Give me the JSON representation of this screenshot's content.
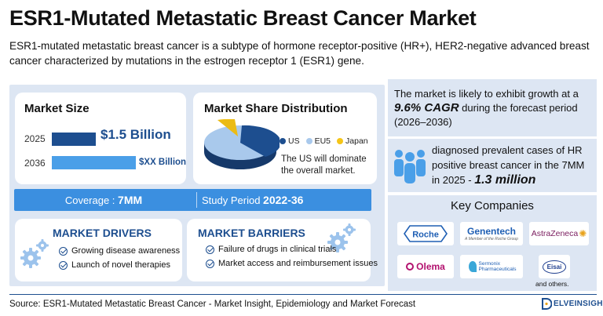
{
  "header": {
    "title": "ESR1-Mutated Metastatic Breast Cancer Market",
    "description": "ESR1-mutated metastatic breast cancer is a subtype of hormone receptor-positive (HR+), HER2-negative advanced breast cancer characterized by mutations in the estrogen receptor 1 (ESR1) gene."
  },
  "market_size": {
    "heading": "Market Size",
    "rows": [
      {
        "year": "2025",
        "value": "$1.5 Billion"
      },
      {
        "year": "2036",
        "value": "$XX Billion"
      }
    ]
  },
  "market_share": {
    "heading": "Market Share Distribution",
    "legend": [
      {
        "label": "US",
        "color": "#1d4e8f"
      },
      {
        "label": "EU5",
        "color": "#a9c9ec"
      },
      {
        "label": "Japan",
        "color": "#f5c518"
      }
    ],
    "note": "The US will dominate the overall market."
  },
  "band": {
    "coverage_label": "Coverage : ",
    "coverage_value": "7MM",
    "period_label": "Study Period ",
    "period_value": "2022-36"
  },
  "drivers": {
    "heading": "MARKET DRIVERS",
    "items": [
      "Growing disease awareness",
      "Launch of novel therapies"
    ]
  },
  "barriers": {
    "heading": "MARKET BARRIERS",
    "items": [
      "Failure of drugs in clinical trials",
      "Market access and reimbursement issues"
    ]
  },
  "growth": {
    "pre": "The market is likely to exhibit growth at a ",
    "cagr": "9.6% CAGR",
    "post": " during the forecast period (2026–2036)"
  },
  "cases": {
    "pre": "diagnosed prevalent cases of HR positive breast cancer in the 7MM in 2025 - ",
    "value": "1.3 million"
  },
  "companies": {
    "heading": "Key Companies",
    "logos": [
      "Roche",
      "Genentech",
      "A Member of the Roche Group",
      "AstraZeneca",
      "Olema",
      "Sermonix Pharmaceuticals",
      "Eisai"
    ],
    "others": "and others."
  },
  "footer": {
    "source": "Source: ESR1-Mutated Metastatic Breast Cancer - Market Insight, Epidemiology and Market Forecast",
    "brand": "ELVEINSIGHT"
  },
  "colors": {
    "primary": "#1d4e8f",
    "accent": "#3b8fe0",
    "panel": "#dde6f3",
    "highlight": "#f5c518"
  }
}
